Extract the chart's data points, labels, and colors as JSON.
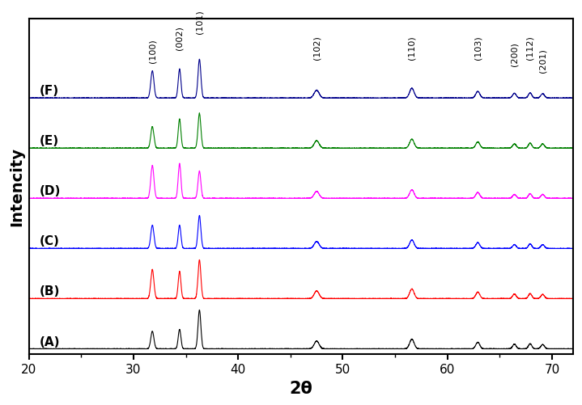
{
  "xlabel": "2θ",
  "ylabel": "Intencity",
  "xlim": [
    20,
    72
  ],
  "labels": [
    "(A)",
    "(B)",
    "(C)",
    "(D)",
    "(E)",
    "(F)"
  ],
  "colors": [
    "black",
    "red",
    "blue",
    "magenta",
    "green",
    "#00008B"
  ],
  "peak_positions": [
    31.8,
    34.4,
    36.3,
    47.5,
    56.6,
    62.9,
    66.4,
    67.9,
    69.1
  ],
  "peak_label_names": [
    "(100)",
    "(002)",
    "(101)",
    "(102)",
    "(110)",
    "(103)",
    "(200)",
    "(112)",
    "(201)"
  ],
  "peak_widths": [
    0.35,
    0.3,
    0.32,
    0.55,
    0.5,
    0.45,
    0.4,
    0.38,
    0.4
  ],
  "scale_variations": [
    [
      0.45,
      0.5,
      1.0,
      0.2,
      0.25,
      0.17,
      0.12,
      0.13,
      0.11
    ],
    [
      0.75,
      0.7,
      1.0,
      0.2,
      0.25,
      0.17,
      0.12,
      0.13,
      0.11
    ],
    [
      0.6,
      0.6,
      0.85,
      0.18,
      0.22,
      0.15,
      0.1,
      0.12,
      0.1
    ],
    [
      0.85,
      0.9,
      0.7,
      0.18,
      0.22,
      0.15,
      0.1,
      0.12,
      0.1
    ],
    [
      0.55,
      0.75,
      0.9,
      0.19,
      0.23,
      0.16,
      0.11,
      0.13,
      0.11
    ],
    [
      0.7,
      0.75,
      1.0,
      0.2,
      0.25,
      0.17,
      0.12,
      0.13,
      0.11
    ]
  ],
  "offsets": [
    0.0,
    0.155,
    0.31,
    0.465,
    0.62,
    0.775
  ],
  "peak_scale": 0.12,
  "noise_level": 0.003,
  "figsize": [
    7.19,
    5.02
  ],
  "dpi": 100
}
